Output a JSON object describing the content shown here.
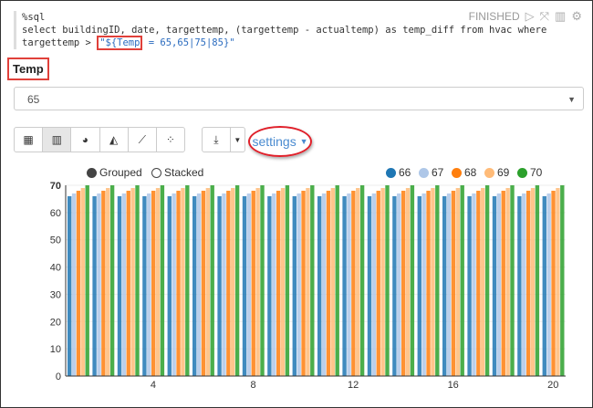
{
  "paragraph": {
    "code_line1": "%sql",
    "code_line2": "select buildingID, date, targettemp, (targettemp - actualtemp) as temp_diff from hvac where",
    "code_line3_prefix": "targettemp > ",
    "code_var": "\"${Temp",
    "code_rest": " = 65,65|75|85}\"",
    "status": "FINISHED",
    "icons": [
      "play-icon",
      "expand-icon",
      "book-icon",
      "gear-icon"
    ]
  },
  "form": {
    "label": "Temp",
    "selected": "65"
  },
  "toolbar": {
    "buttons": [
      "table-icon",
      "bar-chart-icon",
      "pie-chart-icon",
      "area-chart-icon",
      "line-chart-icon",
      "scatter-chart-icon"
    ],
    "active": "bar-chart-icon",
    "download": "download-icon",
    "settings_label": "settings"
  },
  "legend_modes": {
    "grouped": "Grouped",
    "stacked": "Stacked",
    "selected": "Grouped"
  },
  "chart_data": {
    "type": "bar",
    "mode": "grouped",
    "x": [
      1,
      2,
      3,
      4,
      5,
      6,
      7,
      8,
      9,
      10,
      11,
      12,
      13,
      14,
      15,
      16,
      17,
      18,
      19,
      20
    ],
    "xticks": [
      "4",
      "8",
      "12",
      "16",
      "20"
    ],
    "yticks": [
      "0",
      "10",
      "20",
      "30",
      "40",
      "50",
      "60",
      "70"
    ],
    "ylim": [
      0,
      70
    ],
    "legend_position": "top-right",
    "series": [
      {
        "name": "66",
        "color": "#1f77b4",
        "values": [
          66,
          66,
          66,
          66,
          66,
          66,
          66,
          66,
          66,
          66,
          66,
          66,
          66,
          66,
          66,
          66,
          66,
          66,
          66,
          66
        ]
      },
      {
        "name": "67",
        "color": "#aec7e8",
        "values": [
          67,
          67,
          67,
          67,
          67,
          67,
          67,
          67,
          67,
          67,
          67,
          67,
          67,
          67,
          67,
          67,
          67,
          67,
          67,
          67
        ]
      },
      {
        "name": "68",
        "color": "#ff7f0e",
        "values": [
          68,
          68,
          68,
          68,
          68,
          68,
          68,
          68,
          68,
          68,
          68,
          68,
          68,
          68,
          68,
          68,
          68,
          68,
          68,
          68
        ]
      },
      {
        "name": "69",
        "color": "#ffbb78",
        "values": [
          69,
          69,
          69,
          69,
          69,
          69,
          69,
          69,
          69,
          69,
          69,
          69,
          69,
          69,
          69,
          69,
          69,
          69,
          69,
          69
        ]
      },
      {
        "name": "70",
        "color": "#2ca02c",
        "values": [
          70,
          70,
          70,
          70,
          70,
          70,
          70,
          70,
          70,
          70,
          70,
          70,
          70,
          70,
          70,
          70,
          70,
          70,
          70,
          70
        ]
      }
    ]
  }
}
